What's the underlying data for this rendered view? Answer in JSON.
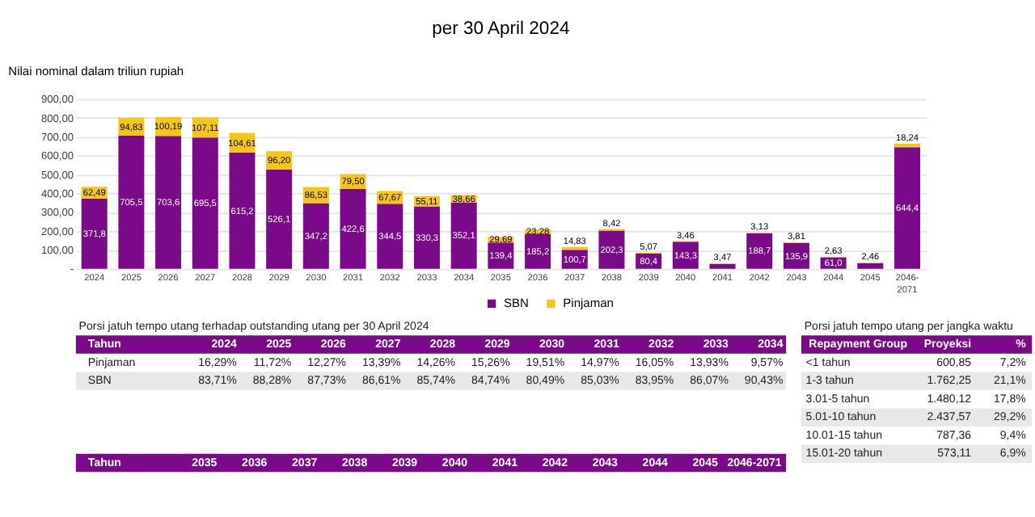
{
  "chart_data": {
    "type": "bar",
    "stacked": true,
    "title": "per 30 April 2024",
    "ylabel": "Nilai nominal dalam triliun rupiah",
    "categories": [
      "2024",
      "2025",
      "2026",
      "2027",
      "2028",
      "2029",
      "2030",
      "2031",
      "2032",
      "2033",
      "2034",
      "2035",
      "2036",
      "2037",
      "2038",
      "2039",
      "2040",
      "2041",
      "2042",
      "2043",
      "2044",
      "2045",
      "2046-2071"
    ],
    "series": [
      {
        "name": "SBN",
        "color": "#7b0a8a",
        "values": [
          371.8,
          705.5,
          703.6,
          695.5,
          615.2,
          526.1,
          347.2,
          422.6,
          344.5,
          330.3,
          352.1,
          139.4,
          185.2,
          100.7,
          202.3,
          80.4,
          143.3,
          25,
          188.7,
          135.9,
          61.0,
          30,
          644.4
        ],
        "value_labels": [
          "371,8",
          "705,5",
          "703,6",
          "695,5",
          "615,2",
          "526,1",
          "347,2",
          "422,6",
          "344,5",
          "330,3",
          "352,1",
          "139,4",
          "185,2",
          "100,7",
          "202,3",
          "80,4",
          "143,3",
          null,
          "188,7",
          "135,9",
          "61,0",
          null,
          "644,4"
        ]
      },
      {
        "name": "Pinjaman",
        "color": "#f5c518",
        "values": [
          62.49,
          94.83,
          100.19,
          107.11,
          104.61,
          96.2,
          86.53,
          79.5,
          67.67,
          55.11,
          38.66,
          29.69,
          23.28,
          14.83,
          8.42,
          5.07,
          3.46,
          3.47,
          3.13,
          3.81,
          2.63,
          2.46,
          18.24
        ],
        "value_labels": [
          "62,49",
          "94,83",
          "100,19",
          "107,11",
          "104,61",
          "96,20",
          "86,53",
          "79,50",
          "67,67",
          "55,11",
          "38,66",
          "29,69",
          "23,28",
          "14,83",
          "8,42",
          "5,07",
          "3,46",
          "3,47",
          "3,13",
          "3,81",
          "2,63",
          "2,46",
          "18,24"
        ]
      }
    ],
    "ylim": [
      0,
      900
    ],
    "yticks": [
      {
        "value": 0,
        "label": "-"
      },
      {
        "value": 100,
        "label": "100,00"
      },
      {
        "value": 200,
        "label": "200,00"
      },
      {
        "value": 300,
        "label": "300,00"
      },
      {
        "value": 400,
        "label": "400,00"
      },
      {
        "value": 500,
        "label": "500,00"
      },
      {
        "value": 600,
        "label": "600,00"
      },
      {
        "value": 700,
        "label": "700,00"
      },
      {
        "value": 800,
        "label": "800,00"
      },
      {
        "value": 900,
        "label": "900,00"
      }
    ],
    "grid": "y",
    "legend": "bottom",
    "annotations": [
      "Porsi jatuh tempo utang terhadap outstanding utang per 30 April 2024",
      "Tahun",
      "2024",
      "2025",
      "2026",
      "2027",
      "2028",
      "2029",
      "2030",
      "2031",
      "2032",
      "2033",
      "2034",
      "Pinjaman",
      "16,29%",
      "11,72%",
      "12,27%",
      "13,39%",
      "14,26%",
      "15,26%",
      "19,51%",
      "14,97%",
      "16,05%",
      "13,93%",
      "9,57%",
      "SBN",
      "83,71%",
      "88,28%",
      "87,73%",
      "86,61%",
      "85,74%",
      "84,74%",
      "80,49%",
      "85,03%",
      "83,95%",
      "86,07%",
      "90,43%",
      "Tahun",
      "2035",
      "2036",
      "2037",
      "2038",
      "2039",
      "2040",
      "2041",
      "2042",
      "2043",
      "2044",
      "2045",
      "2046-2071",
      "Porsi jatuh tempo utang per jangka waktu",
      "Repayment Group",
      "Proyeksi",
      "%",
      "<1 tahun",
      "600,85",
      "7,2%",
      "1-3 tahun",
      "1.762,25",
      "21,1%",
      "3.01-5 tahun",
      "1.480,12",
      "17,8%",
      "5.01-10 tahun",
      "2.437,57",
      "29,2%",
      "10.01-15 tahun",
      "787,36",
      "9,4%",
      "15.01-20 tahun",
      "573,11",
      "6,9%"
    ]
  }
}
